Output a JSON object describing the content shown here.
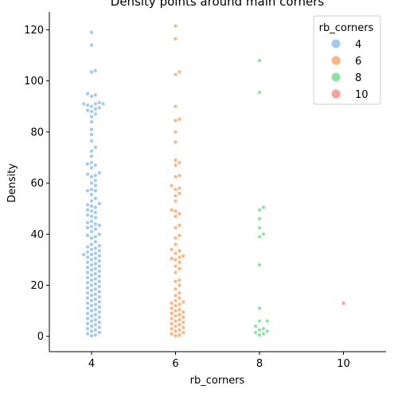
{
  "chart_data": {
    "type": "scatter",
    "subtype": "swarm",
    "title": "Density points around main corners",
    "xlabel": "rb_corners",
    "ylabel": "Density",
    "categories": [
      "4",
      "6",
      "8",
      "10"
    ],
    "yticks": [
      0,
      20,
      40,
      60,
      80,
      100,
      120
    ],
    "ylim": [
      -6,
      127
    ],
    "legend": {
      "title": "rb_corners",
      "placement": "top-right",
      "entries": [
        "4",
        "6",
        "8",
        "10"
      ]
    },
    "colors": {
      "4": "#a1c9f4",
      "6": "#ffb482",
      "8": "#8de5a1",
      "10": "#ff9f9b"
    },
    "series": [
      {
        "name": "4",
        "values": [
          119,
          114,
          104,
          103.5,
          95,
          94.5,
          94,
          91.5,
          91,
          91,
          91,
          90.5,
          90,
          89.5,
          89,
          88.5,
          88,
          87,
          86,
          84,
          81,
          79,
          76.5,
          74,
          72.5,
          70.5,
          68,
          67.5,
          67,
          66,
          64,
          63.5,
          63,
          62.5,
          61,
          60,
          59,
          57.5,
          57,
          57,
          55.5,
          54,
          53,
          52,
          51.5,
          51,
          50.5,
          49.5,
          49,
          48.5,
          47.5,
          47,
          46.5,
          45,
          44.5,
          44,
          43.5,
          43,
          42.5,
          42,
          41,
          40,
          39.5,
          39,
          38.5,
          37,
          36,
          35.5,
          35,
          34.5,
          34,
          33.5,
          33,
          32.5,
          32,
          32,
          31.5,
          31,
          30.5,
          30,
          29.5,
          29,
          28.5,
          28,
          27.5,
          27,
          26.5,
          26,
          25.5,
          25,
          24.5,
          24,
          23.5,
          23,
          22.5,
          22,
          21.5,
          21,
          20.5,
          20,
          19.5,
          19,
          18.5,
          18,
          17.5,
          17,
          16.5,
          16,
          15.5,
          15,
          14.5,
          14,
          13.5,
          13,
          12.5,
          12,
          11.5,
          11,
          10.5,
          10,
          9.5,
          9,
          8.5,
          8,
          7.5,
          7,
          6.5,
          6,
          5.5,
          5,
          4.5,
          4,
          3.5,
          3,
          2.5,
          2,
          1.5,
          1,
          0.5,
          0.2
        ]
      },
      {
        "name": "6",
        "values": [
          121.5,
          116.5,
          103.5,
          102.5,
          90,
          85,
          84.5,
          80,
          76,
          69,
          68,
          67,
          63,
          62.5,
          59,
          58,
          57.5,
          56,
          55,
          53,
          49.5,
          49,
          48,
          47,
          43.5,
          42.5,
          39.5,
          38.5,
          36,
          34,
          33.5,
          32.5,
          31.5,
          31,
          30.5,
          30,
          29,
          27.5,
          26.5,
          25,
          22,
          21.5,
          20,
          18.5,
          17,
          16,
          15,
          14,
          13.5,
          13,
          12.5,
          12,
          11,
          10.5,
          10,
          9.5,
          9,
          8.5,
          8,
          7.5,
          7,
          6.5,
          6,
          5.5,
          5,
          4.5,
          4,
          3.5,
          3,
          2.5,
          2,
          1.5,
          1,
          0.5,
          0.2
        ]
      },
      {
        "name": "8",
        "values": [
          108,
          95.5,
          50.5,
          49.5,
          46,
          42.5,
          40,
          39,
          28,
          11,
          6,
          6,
          4,
          3,
          2.5,
          2,
          1.5,
          1,
          0.5
        ]
      },
      {
        "name": "10",
        "values": [
          13
        ]
      }
    ]
  }
}
